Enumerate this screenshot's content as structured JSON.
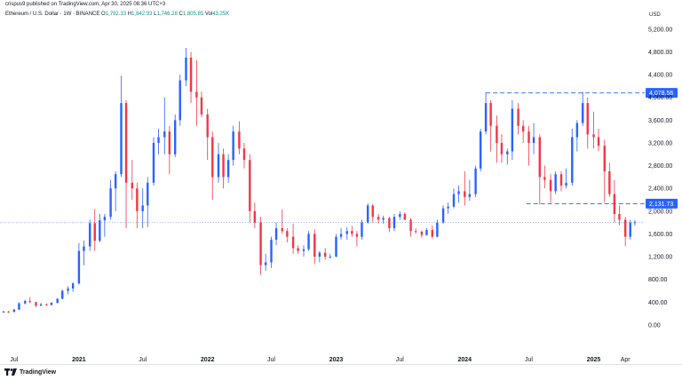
{
  "header": {
    "published_line": "crispus9 published on TradingView.com, Apr 30, 2025 08:36 UTC+3",
    "symbol": "Ethereum / U.S. Dollar · 1W · BINANCE",
    "o_label": "O",
    "o_value": "1,792.33",
    "h_label": "H",
    "h_value": "1,842.93",
    "l_label": "L",
    "l_value": "1,746.28",
    "c_label": "C",
    "c_value": "1,805.85",
    "vol_label": "Vol",
    "vol_value": "43.25K"
  },
  "currency_label": "USD",
  "footer": {
    "logo_text": "TradingView"
  },
  "colors": {
    "up": "#2962ff",
    "down": "#f23645",
    "level_line": "#2962ff",
    "price_line": "#2962ff"
  },
  "chart_data": {
    "type": "candlestick",
    "title": "Ethereum / U.S. Dollar · 1W · BINANCE",
    "ylabel": "USD",
    "x_range": [
      "2020-06-01",
      "2025-05-31"
    ],
    "ylim": [
      -500,
      5400
    ],
    "grid": false,
    "y_ticks": [
      0,
      400,
      800,
      1200,
      1600,
      2000,
      2400,
      2800,
      3200,
      3600,
      4000,
      4400,
      4800,
      5200
    ],
    "y_tick_labels": [
      "0.00",
      "400.00",
      "800.00",
      "1,200.00",
      "1,600.00",
      "2,000.00",
      "2,400.00",
      "2,800.00",
      "3,200.00",
      "3,600.00",
      "4,000.00",
      "4,400.00",
      "4,800.00",
      "5,200.00"
    ],
    "x_ticks": [
      {
        "date": "2020-07-01",
        "label": "Jul",
        "bold": false
      },
      {
        "date": "2021-01-01",
        "label": "2021",
        "bold": true
      },
      {
        "date": "2021-07-01",
        "label": "Jul",
        "bold": false
      },
      {
        "date": "2022-01-01",
        "label": "2022",
        "bold": true
      },
      {
        "date": "2022-07-01",
        "label": "Jul",
        "bold": false
      },
      {
        "date": "2023-01-01",
        "label": "2023",
        "bold": true
      },
      {
        "date": "2023-07-01",
        "label": "Jul",
        "bold": false
      },
      {
        "date": "2024-01-01",
        "label": "2024",
        "bold": true
      },
      {
        "date": "2024-07-01",
        "label": "Jul",
        "bold": false
      },
      {
        "date": "2025-01-01",
        "label": "2025",
        "bold": true
      },
      {
        "date": "2025-04-01",
        "label": "Apr",
        "bold": false
      }
    ],
    "key_levels": [
      {
        "value": 4078.56,
        "label": "4,078.56",
        "start_date": "2024-03-01",
        "end_date": "2025-05-31",
        "style": "dashed"
      },
      {
        "value": 2131.73,
        "label": "2,131.73",
        "start_date": "2024-06-24",
        "end_date": "2025-05-31",
        "style": "dashed"
      }
    ],
    "last_price": {
      "value": 1805.85,
      "style": "dotted"
    },
    "candles": [
      {
        "date": "2020-06-01",
        "o": 225,
        "h": 250,
        "l": 215,
        "c": 235
      },
      {
        "date": "2020-06-15",
        "o": 235,
        "h": 245,
        "l": 210,
        "c": 230
      },
      {
        "date": "2020-07-01",
        "o": 230,
        "h": 280,
        "l": 220,
        "c": 270
      },
      {
        "date": "2020-07-15",
        "o": 270,
        "h": 400,
        "l": 260,
        "c": 380
      },
      {
        "date": "2020-08-01",
        "o": 380,
        "h": 440,
        "l": 360,
        "c": 420
      },
      {
        "date": "2020-08-15",
        "o": 420,
        "h": 490,
        "l": 380,
        "c": 400
      },
      {
        "date": "2020-09-01",
        "o": 400,
        "h": 410,
        "l": 310,
        "c": 340
      },
      {
        "date": "2020-09-15",
        "o": 340,
        "h": 390,
        "l": 330,
        "c": 360
      },
      {
        "date": "2020-10-01",
        "o": 360,
        "h": 380,
        "l": 340,
        "c": 350
      },
      {
        "date": "2020-10-15",
        "o": 350,
        "h": 400,
        "l": 340,
        "c": 390
      },
      {
        "date": "2020-11-01",
        "o": 390,
        "h": 470,
        "l": 380,
        "c": 460
      },
      {
        "date": "2020-11-15",
        "o": 460,
        "h": 620,
        "l": 450,
        "c": 600
      },
      {
        "date": "2020-12-01",
        "o": 600,
        "h": 680,
        "l": 540,
        "c": 640
      },
      {
        "date": "2020-12-15",
        "o": 640,
        "h": 750,
        "l": 580,
        "c": 730
      },
      {
        "date": "2021-01-01",
        "o": 730,
        "h": 1440,
        "l": 710,
        "c": 1300
      },
      {
        "date": "2021-01-15",
        "o": 1300,
        "h": 1480,
        "l": 1050,
        "c": 1380
      },
      {
        "date": "2021-02-01",
        "o": 1380,
        "h": 1850,
        "l": 1300,
        "c": 1790
      },
      {
        "date": "2021-02-15",
        "o": 1790,
        "h": 2040,
        "l": 1300,
        "c": 1480
      },
      {
        "date": "2021-03-01",
        "o": 1480,
        "h": 1950,
        "l": 1450,
        "c": 1840
      },
      {
        "date": "2021-03-15",
        "o": 1840,
        "h": 1950,
        "l": 1550,
        "c": 1900
      },
      {
        "date": "2021-04-01",
        "o": 1900,
        "h": 2550,
        "l": 1850,
        "c": 2400
      },
      {
        "date": "2021-04-15",
        "o": 2400,
        "h": 2700,
        "l": 2000,
        "c": 2650
      },
      {
        "date": "2021-05-01",
        "o": 2650,
        "h": 4380,
        "l": 2600,
        "c": 3900
      },
      {
        "date": "2021-05-15",
        "o": 3900,
        "h": 3950,
        "l": 1700,
        "c": 2500
      },
      {
        "date": "2021-06-01",
        "o": 2500,
        "h": 2900,
        "l": 2200,
        "c": 2400
      },
      {
        "date": "2021-06-15",
        "o": 2400,
        "h": 2500,
        "l": 1700,
        "c": 2000
      },
      {
        "date": "2021-07-01",
        "o": 2000,
        "h": 2400,
        "l": 1700,
        "c": 2100
      },
      {
        "date": "2021-07-15",
        "o": 2100,
        "h": 2600,
        "l": 1720,
        "c": 2500
      },
      {
        "date": "2021-08-01",
        "o": 2500,
        "h": 3300,
        "l": 2450,
        "c": 3200
      },
      {
        "date": "2021-08-15",
        "o": 3200,
        "h": 3450,
        "l": 3000,
        "c": 3300
      },
      {
        "date": "2021-09-01",
        "o": 3300,
        "h": 4000,
        "l": 3000,
        "c": 3400
      },
      {
        "date": "2021-09-15",
        "o": 3400,
        "h": 3500,
        "l": 2650,
        "c": 3000
      },
      {
        "date": "2021-10-01",
        "o": 3000,
        "h": 3700,
        "l": 2950,
        "c": 3600
      },
      {
        "date": "2021-10-15",
        "o": 3600,
        "h": 4400,
        "l": 3500,
        "c": 4300
      },
      {
        "date": "2021-11-01",
        "o": 4300,
        "h": 4870,
        "l": 4200,
        "c": 4700
      },
      {
        "date": "2021-11-15",
        "o": 4700,
        "h": 4800,
        "l": 3900,
        "c": 4100
      },
      {
        "date": "2021-12-01",
        "o": 4100,
        "h": 4650,
        "l": 3500,
        "c": 4000
      },
      {
        "date": "2021-12-15",
        "o": 4000,
        "h": 4100,
        "l": 3650,
        "c": 3700
      },
      {
        "date": "2022-01-01",
        "o": 3700,
        "h": 3800,
        "l": 2900,
        "c": 3300
      },
      {
        "date": "2022-01-15",
        "o": 3300,
        "h": 3400,
        "l": 2200,
        "c": 2600
      },
      {
        "date": "2022-02-01",
        "o": 2600,
        "h": 3200,
        "l": 2500,
        "c": 3000
      },
      {
        "date": "2022-02-15",
        "o": 3000,
        "h": 3100,
        "l": 2400,
        "c": 2600
      },
      {
        "date": "2022-03-01",
        "o": 2600,
        "h": 3000,
        "l": 2500,
        "c": 2900
      },
      {
        "date": "2022-03-15",
        "o": 2900,
        "h": 3500,
        "l": 2800,
        "c": 3400
      },
      {
        "date": "2022-04-01",
        "o": 3400,
        "h": 3580,
        "l": 3000,
        "c": 3100
      },
      {
        "date": "2022-04-15",
        "o": 3100,
        "h": 3200,
        "l": 2750,
        "c": 2900
      },
      {
        "date": "2022-05-01",
        "o": 2900,
        "h": 3000,
        "l": 1800,
        "c": 2000
      },
      {
        "date": "2022-05-15",
        "o": 2000,
        "h": 2150,
        "l": 1700,
        "c": 1800
      },
      {
        "date": "2022-06-01",
        "o": 1800,
        "h": 1900,
        "l": 881,
        "c": 1050
      },
      {
        "date": "2022-06-15",
        "o": 1050,
        "h": 1250,
        "l": 950,
        "c": 1100
      },
      {
        "date": "2022-07-01",
        "o": 1100,
        "h": 1550,
        "l": 1000,
        "c": 1500
      },
      {
        "date": "2022-07-15",
        "o": 1500,
        "h": 1800,
        "l": 1400,
        "c": 1700
      },
      {
        "date": "2022-08-01",
        "o": 1700,
        "h": 2030,
        "l": 1600,
        "c": 1650
      },
      {
        "date": "2022-08-15",
        "o": 1650,
        "h": 1700,
        "l": 1450,
        "c": 1550
      },
      {
        "date": "2022-09-01",
        "o": 1550,
        "h": 1780,
        "l": 1250,
        "c": 1350
      },
      {
        "date": "2022-09-15",
        "o": 1350,
        "h": 1400,
        "l": 1250,
        "c": 1300
      },
      {
        "date": "2022-10-01",
        "o": 1300,
        "h": 1400,
        "l": 1200,
        "c": 1330
      },
      {
        "date": "2022-10-15",
        "o": 1330,
        "h": 1650,
        "l": 1300,
        "c": 1600
      },
      {
        "date": "2022-11-01",
        "o": 1600,
        "h": 1680,
        "l": 1070,
        "c": 1200
      },
      {
        "date": "2022-11-15",
        "o": 1200,
        "h": 1300,
        "l": 1100,
        "c": 1270
      },
      {
        "date": "2022-12-01",
        "o": 1270,
        "h": 1350,
        "l": 1150,
        "c": 1200
      },
      {
        "date": "2022-12-15",
        "o": 1200,
        "h": 1250,
        "l": 1170,
        "c": 1200
      },
      {
        "date": "2023-01-01",
        "o": 1200,
        "h": 1600,
        "l": 1190,
        "c": 1550
      },
      {
        "date": "2023-01-15",
        "o": 1550,
        "h": 1700,
        "l": 1500,
        "c": 1600
      },
      {
        "date": "2023-02-01",
        "o": 1600,
        "h": 1720,
        "l": 1500,
        "c": 1650
      },
      {
        "date": "2023-02-15",
        "o": 1650,
        "h": 1740,
        "l": 1550,
        "c": 1600
      },
      {
        "date": "2023-03-01",
        "o": 1600,
        "h": 1650,
        "l": 1380,
        "c": 1550
      },
      {
        "date": "2023-03-15",
        "o": 1550,
        "h": 1850,
        "l": 1500,
        "c": 1800
      },
      {
        "date": "2023-04-01",
        "o": 1800,
        "h": 2140,
        "l": 1780,
        "c": 2100
      },
      {
        "date": "2023-04-15",
        "o": 2100,
        "h": 2120,
        "l": 1800,
        "c": 1900
      },
      {
        "date": "2023-05-01",
        "o": 1900,
        "h": 1950,
        "l": 1780,
        "c": 1850
      },
      {
        "date": "2023-05-15",
        "o": 1850,
        "h": 1920,
        "l": 1780,
        "c": 1880
      },
      {
        "date": "2023-06-01",
        "o": 1880,
        "h": 1900,
        "l": 1630,
        "c": 1700
      },
      {
        "date": "2023-06-15",
        "o": 1700,
        "h": 1950,
        "l": 1650,
        "c": 1900
      },
      {
        "date": "2023-07-01",
        "o": 1900,
        "h": 2000,
        "l": 1850,
        "c": 1950
      },
      {
        "date": "2023-07-15",
        "o": 1950,
        "h": 1980,
        "l": 1840,
        "c": 1850
      },
      {
        "date": "2023-08-01",
        "o": 1850,
        "h": 1880,
        "l": 1550,
        "c": 1650
      },
      {
        "date": "2023-08-15",
        "o": 1650,
        "h": 1700,
        "l": 1600,
        "c": 1640
      },
      {
        "date": "2023-09-01",
        "o": 1640,
        "h": 1660,
        "l": 1530,
        "c": 1580
      },
      {
        "date": "2023-09-15",
        "o": 1580,
        "h": 1700,
        "l": 1570,
        "c": 1670
      },
      {
        "date": "2023-10-01",
        "o": 1670,
        "h": 1750,
        "l": 1520,
        "c": 1550
      },
      {
        "date": "2023-10-15",
        "o": 1550,
        "h": 1850,
        "l": 1540,
        "c": 1800
      },
      {
        "date": "2023-11-01",
        "o": 1800,
        "h": 2100,
        "l": 1780,
        "c": 2050
      },
      {
        "date": "2023-11-15",
        "o": 2050,
        "h": 2150,
        "l": 1950,
        "c": 2080
      },
      {
        "date": "2023-12-01",
        "o": 2080,
        "h": 2400,
        "l": 2050,
        "c": 2300
      },
      {
        "date": "2023-12-15",
        "o": 2300,
        "h": 2450,
        "l": 2150,
        "c": 2350
      },
      {
        "date": "2024-01-01",
        "o": 2350,
        "h": 2700,
        "l": 2100,
        "c": 2250
      },
      {
        "date": "2024-01-15",
        "o": 2250,
        "h": 2550,
        "l": 2180,
        "c": 2300
      },
      {
        "date": "2024-02-01",
        "o": 2300,
        "h": 2800,
        "l": 2250,
        "c": 2750
      },
      {
        "date": "2024-02-15",
        "o": 2750,
        "h": 3450,
        "l": 2700,
        "c": 3400
      },
      {
        "date": "2024-03-01",
        "o": 3400,
        "h": 4090,
        "l": 3350,
        "c": 3900
      },
      {
        "date": "2024-03-15",
        "o": 3900,
        "h": 3950,
        "l": 3050,
        "c": 3500
      },
      {
        "date": "2024-04-01",
        "o": 3500,
        "h": 3680,
        "l": 2850,
        "c": 3200
      },
      {
        "date": "2024-04-15",
        "o": 3200,
        "h": 3350,
        "l": 2850,
        "c": 3000
      },
      {
        "date": "2024-05-01",
        "o": 3000,
        "h": 3100,
        "l": 2820,
        "c": 3050
      },
      {
        "date": "2024-05-15",
        "o": 3050,
        "h": 3950,
        "l": 2900,
        "c": 3800
      },
      {
        "date": "2024-06-01",
        "o": 3800,
        "h": 3900,
        "l": 3350,
        "c": 3500
      },
      {
        "date": "2024-06-15",
        "o": 3500,
        "h": 3600,
        "l": 3200,
        "c": 3400
      },
      {
        "date": "2024-07-01",
        "o": 3400,
        "h": 3500,
        "l": 2800,
        "c": 3200
      },
      {
        "date": "2024-07-15",
        "o": 3200,
        "h": 3550,
        "l": 3000,
        "c": 3300
      },
      {
        "date": "2024-08-01",
        "o": 3300,
        "h": 3350,
        "l": 2120,
        "c": 2600
      },
      {
        "date": "2024-08-15",
        "o": 2600,
        "h": 2800,
        "l": 2400,
        "c": 2550
      },
      {
        "date": "2024-09-01",
        "o": 2550,
        "h": 2650,
        "l": 2150,
        "c": 2350
      },
      {
        "date": "2024-09-15",
        "o": 2350,
        "h": 2700,
        "l": 2300,
        "c": 2650
      },
      {
        "date": "2024-10-01",
        "o": 2650,
        "h": 2700,
        "l": 2350,
        "c": 2450
      },
      {
        "date": "2024-10-15",
        "o": 2450,
        "h": 2750,
        "l": 2400,
        "c": 2500
      },
      {
        "date": "2024-11-01",
        "o": 2500,
        "h": 3450,
        "l": 2450,
        "c": 3300
      },
      {
        "date": "2024-11-15",
        "o": 3300,
        "h": 3600,
        "l": 3050,
        "c": 3550
      },
      {
        "date": "2024-12-01",
        "o": 3550,
        "h": 4100,
        "l": 3500,
        "c": 3900
      },
      {
        "date": "2024-12-15",
        "o": 3900,
        "h": 4000,
        "l": 3100,
        "c": 3350
      },
      {
        "date": "2025-01-01",
        "o": 3350,
        "h": 3750,
        "l": 3100,
        "c": 3300
      },
      {
        "date": "2025-01-15",
        "o": 3300,
        "h": 3450,
        "l": 3050,
        "c": 3150
      },
      {
        "date": "2025-02-01",
        "o": 3150,
        "h": 3250,
        "l": 2150,
        "c": 2700
      },
      {
        "date": "2025-02-15",
        "o": 2700,
        "h": 2850,
        "l": 2250,
        "c": 2300
      },
      {
        "date": "2025-03-01",
        "o": 2300,
        "h": 2550,
        "l": 1800,
        "c": 1950
      },
      {
        "date": "2025-03-15",
        "o": 1950,
        "h": 2100,
        "l": 1750,
        "c": 1850
      },
      {
        "date": "2025-04-01",
        "o": 1850,
        "h": 1900,
        "l": 1385,
        "c": 1550
      },
      {
        "date": "2025-04-15",
        "o": 1550,
        "h": 1850,
        "l": 1500,
        "c": 1800
      },
      {
        "date": "2025-04-28",
        "o": 1792.33,
        "h": 1842.93,
        "l": 1746.28,
        "c": 1805.85
      }
    ]
  }
}
